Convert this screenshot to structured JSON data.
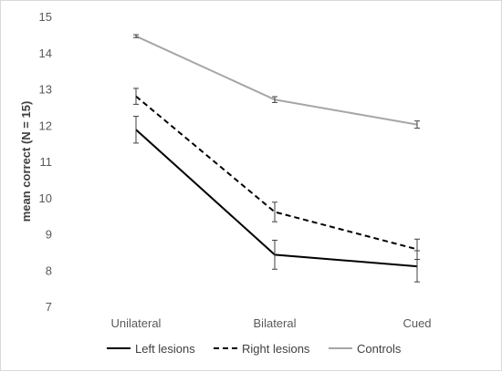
{
  "chart_data": {
    "type": "line",
    "categories": [
      "Unilateral",
      "Bilateral",
      "Cued"
    ],
    "ylabel": "mean correct (N = 15)",
    "xlabel": "",
    "ylim": [
      7,
      15
    ],
    "yticks": [
      7,
      8,
      9,
      10,
      11,
      12,
      13,
      14,
      15
    ],
    "grid": false,
    "legend_position": "bottom",
    "series": [
      {
        "name": "Left lesions",
        "values": [
          11.9,
          8.45,
          8.13
        ],
        "error": [
          0.37,
          0.4,
          0.43
        ],
        "color": "#000000",
        "dash": "solid"
      },
      {
        "name": "Right lesions",
        "values": [
          12.82,
          9.63,
          8.6
        ],
        "error": [
          0.22,
          0.27,
          0.28
        ],
        "color": "#000000",
        "dash": "dashed"
      },
      {
        "name": "Controls",
        "values": [
          14.48,
          12.73,
          12.04
        ],
        "error": [
          0.04,
          0.08,
          0.1
        ],
        "color": "#a6a6a6",
        "dash": "solid"
      }
    ]
  }
}
